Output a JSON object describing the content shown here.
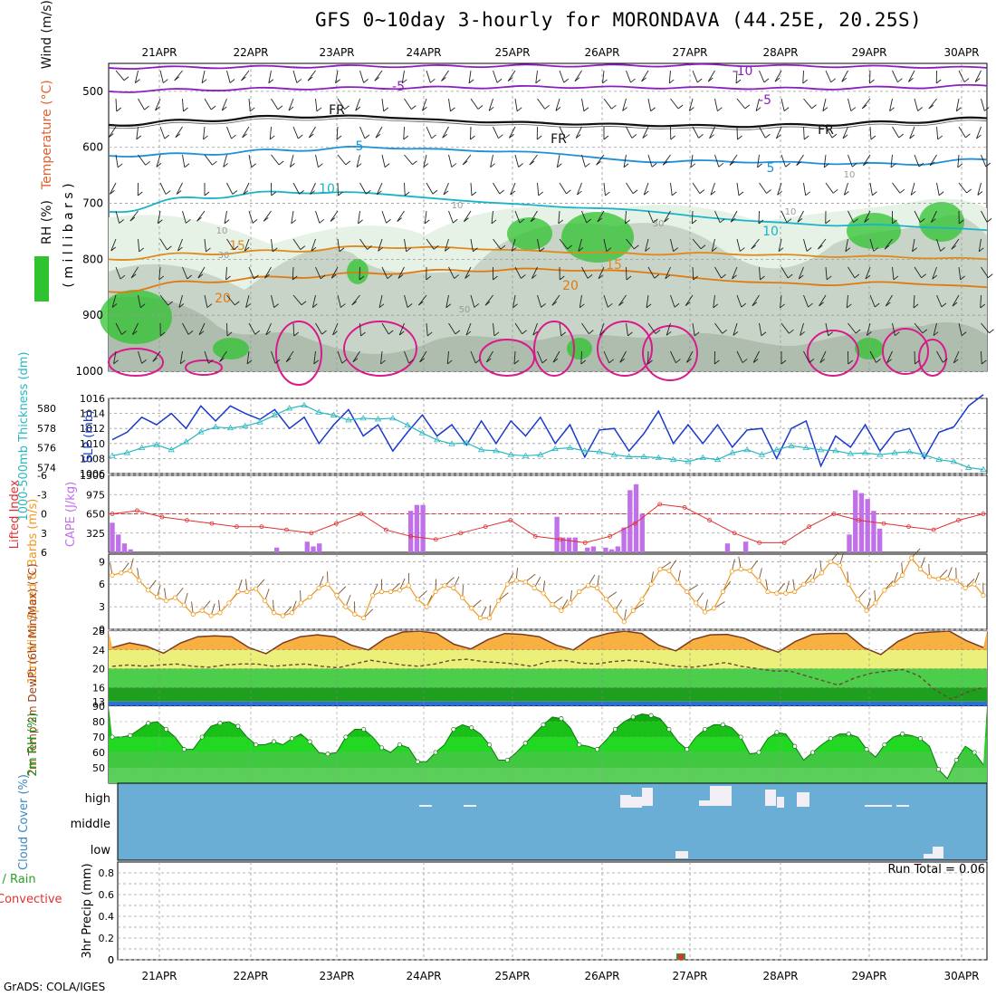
{
  "title": "GFS 0~10day 3-hourly for MORONDAVA (44.25E, 20.25S)",
  "credit": "GrADS: COLA/IGES",
  "colors": {
    "grid": "#9a9a9a",
    "purple": "#8a1fbf",
    "blue": "#1e90d8",
    "teal": "#18b4c8",
    "orange": "#e08a1e",
    "dkorange": "#e07a10",
    "magenta": "#d81a8a",
    "green": "#2fc32f",
    "cape": "#c070e8",
    "li": "#e03030",
    "slp": "#1a3acc",
    "thick": "#2ab8c0",
    "wind": "#f09a20",
    "cloud": "#6aaed6"
  },
  "chart_data": [
    {
      "type": "heatmap",
      "panel": "upper-air",
      "ylabel_parts": [
        "Wind (m/s)",
        "Temperature (°C)",
        "RH (%)"
      ],
      "ylabel_units": "( m i l l i b a r s )",
      "x_labels": [
        "21APR",
        "22APR",
        "23APR",
        "24APR",
        "25APR",
        "26APR",
        "27APR",
        "28APR",
        "29APR",
        "30APR"
      ],
      "yticks": [
        500,
        600,
        700,
        800,
        900,
        1000
      ],
      "ylim": [
        1000,
        450
      ],
      "contours": [
        {
          "label": "-10",
          "p": [
            458,
            457,
            456,
            455,
            455,
            454,
            454,
            453,
            455,
            456,
            458
          ]
        },
        {
          "label": "-5",
          "p": [
            500,
            497,
            495,
            494,
            493,
            492,
            493,
            494,
            495,
            493,
            490
          ]
        },
        {
          "label": "FR",
          "p": [
            560,
            552,
            545,
            545,
            553,
            557,
            560,
            562,
            560,
            555,
            548
          ]
        },
        {
          "label": "5",
          "p": [
            615,
            612,
            605,
            600,
            605,
            610,
            625,
            625,
            628,
            630,
            622
          ]
        },
        {
          "label": "10",
          "p": [
            715,
            690,
            680,
            682,
            695,
            705,
            712,
            728,
            738,
            740,
            748
          ]
        },
        {
          "label": "15",
          "p": [
            800,
            790,
            785,
            778,
            780,
            786,
            790,
            790,
            794,
            796,
            800
          ]
        },
        {
          "label": "20",
          "p": [
            858,
            840,
            832,
            825,
            820,
            818,
            822,
            838,
            845,
            842,
            850
          ]
        }
      ],
      "contour_labels": [
        "-10",
        "-5",
        "-5",
        "FR",
        "FR",
        "FR",
        "5",
        "5",
        "10",
        "10",
        "15",
        "15",
        "20",
        "20",
        "10",
        "30",
        "30",
        "50",
        "10",
        "10",
        "10"
      ]
    },
    {
      "type": "line",
      "panel": "slp-thickness",
      "ylabel_left": "1000-500mb Thickness (dm)",
      "ylabel_right": "SLP (mb)",
      "yticks_left": [
        574,
        576,
        578,
        580
      ],
      "yticks_right": [
        1006,
        1008,
        1010,
        1012,
        1014,
        1016
      ],
      "series": [
        {
          "name": "SLP (mb)",
          "values": [
            1010.5,
            1011.5,
            1013.5,
            1012.5,
            1014,
            1012,
            1015,
            1013,
            1015,
            1014,
            1013.2,
            1014.5,
            1012,
            1013.5,
            1010,
            1012.5,
            1014.5,
            1011,
            1012.5,
            1009,
            1011.5,
            1013.8,
            1011,
            1012.5,
            1009.8,
            1013,
            1010,
            1013,
            1011,
            1013.5,
            1010,
            1012.5,
            1008.2,
            1011.8,
            1012,
            1009,
            1011.3,
            1014.3,
            1010,
            1012.5,
            1010,
            1012.5,
            1009.5,
            1011.8,
            1012,
            1008,
            1012,
            1013,
            1007,
            1011,
            1009.5,
            1012.5,
            1009,
            1011.5,
            1012,
            1008,
            1011.5,
            1012.2,
            1015,
            1016.5
          ]
        },
        {
          "name": "1000-500mb Thickness (dm)",
          "values": [
            575.2,
            575.5,
            576.0,
            576.3,
            575.8,
            576.6,
            577.6,
            578.1,
            578.0,
            578.2,
            578.6,
            579.3,
            580.0,
            580.3,
            579.6,
            579.3,
            578.8,
            579.0,
            578.9,
            579.0,
            578.3,
            577.5,
            576.8,
            576.4,
            576.5,
            575.8,
            575.7,
            575.3,
            575.2,
            575.3,
            575.9,
            576.0,
            575.7,
            575.6,
            575.3,
            575.1,
            575.1,
            575.0,
            574.8,
            574.6,
            575.0,
            574.8,
            575.5,
            575.8,
            575.3,
            575.8,
            576.2,
            576.0,
            575.8,
            575.7,
            575.4,
            575.5,
            575.3,
            575.5,
            575.6,
            575.3,
            574.8,
            574.6,
            574.0,
            573.8
          ]
        }
      ]
    },
    {
      "type": "bar",
      "panel": "cape-li",
      "ylabel_left": "Lifted Index",
      "ylabel_right": "CAPE (J/kg)",
      "yticks_left": [
        -6,
        -3,
        0,
        3,
        6
      ],
      "yticks_right": [
        325,
        650,
        975,
        1300
      ],
      "series": [
        {
          "name": "CAPE (J/kg)",
          "values": [
            500,
            300,
            150,
            50,
            0,
            0,
            0,
            0,
            0,
            0,
            0,
            0,
            0,
            0,
            0,
            0,
            0,
            0,
            0,
            0,
            0,
            0,
            0,
            0,
            0,
            0,
            0,
            80,
            0,
            0,
            0,
            0,
            180,
            100,
            150,
            0,
            0,
            0,
            0,
            0,
            0,
            0,
            0,
            0,
            0,
            0,
            0,
            0,
            0,
            700,
            800,
            800,
            0,
            0,
            0,
            0,
            0,
            0,
            0,
            0,
            0,
            0,
            0,
            0,
            0,
            0,
            0,
            0,
            0,
            0,
            0,
            0,
            0,
            600,
            250,
            250,
            250,
            0,
            80,
            100,
            0,
            80,
            50,
            100,
            420,
            1050,
            1150,
            650,
            0,
            0,
            0,
            0,
            0,
            0,
            0,
            0,
            0,
            0,
            0,
            0,
            0,
            150,
            0,
            0,
            180,
            0,
            0,
            0,
            0,
            0,
            0,
            0,
            0,
            0,
            0,
            0,
            0,
            0,
            0,
            0,
            0,
            300,
            1050,
            1000,
            900,
            700,
            400,
            0,
            0,
            0,
            0,
            0,
            0,
            0,
            0,
            0,
            0,
            0,
            0,
            0,
            0,
            0,
            0,
            0
          ]
        },
        {
          "name": "Lifted Index",
          "values": [
            0,
            -0.5,
            0.5,
            1,
            1.5,
            2,
            2,
            2.5,
            3,
            1.5,
            0,
            2.5,
            3.5,
            4,
            3,
            2,
            1,
            3.5,
            4,
            4.5,
            3.5,
            1.5,
            -1.5,
            -1,
            1,
            3,
            4.5,
            4.5,
            2,
            0,
            1,
            1.5,
            2,
            2.5,
            1,
            0
          ]
        }
      ]
    },
    {
      "type": "line",
      "panel": "wind-10m",
      "ylabel": "10m Wind Speed & Barbs (m/s)",
      "yticks": [
        0,
        3,
        6,
        9
      ],
      "ylim": [
        0,
        10
      ],
      "series": [
        {
          "name": "10m Wind Speed",
          "values": [
            7.2,
            7.5,
            7.8,
            6.5,
            5.2,
            4.3,
            3.8,
            4.2,
            3.2,
            2,
            2.5,
            1.8,
            2.2,
            3.5,
            5,
            5,
            5.4,
            3.8,
            2.2,
            1.8,
            2.2,
            3.5,
            4.3,
            5.5,
            6,
            4.5,
            3,
            2,
            1.5,
            4.5,
            5,
            5,
            5.2,
            5.8,
            4,
            3,
            5,
            5.8,
            5.5,
            4.2,
            2.8,
            1.5,
            1.5,
            3.8,
            6,
            6.5,
            6.3,
            5.5,
            4.8,
            3.3,
            2.5,
            3.5,
            5,
            5.8,
            5.5,
            4,
            2.5,
            1,
            2.5,
            4,
            6,
            8,
            7.8,
            6.2,
            5,
            3.5,
            2.3,
            2.8,
            5,
            7.7,
            8,
            7.8,
            6.5,
            5,
            4.8,
            4.8,
            5,
            6,
            6.5,
            7.5,
            9,
            8.5,
            6,
            4,
            2.5,
            3.5,
            5.2,
            6,
            7.2,
            9.5,
            8,
            7,
            6.7,
            6.7,
            6.5,
            5.5,
            6,
            4.5
          ]
        }
      ]
    },
    {
      "type": "area",
      "panel": "temp-2m",
      "ylabel": "2m Temp 2m DewPt (6hr Min/Max) (°C)",
      "yticks": [
        13,
        16,
        20,
        24,
        28
      ],
      "ylim": [
        12,
        28
      ],
      "series": [
        {
          "name": "2m Temp",
          "values": [
            24.5,
            25.5,
            24.8,
            23.3,
            25.5,
            26.8,
            27,
            26.8,
            24.5,
            23.2,
            25.5,
            26.8,
            27.2,
            26.8,
            25,
            24,
            26.5,
            27.8,
            28,
            27.5,
            25.2,
            24.2,
            26.2,
            27.5,
            27.3,
            26.8,
            25,
            24,
            26.5,
            27.5,
            28,
            27.5,
            25,
            23.8,
            26.2,
            27.2,
            27.3,
            26.5,
            24.8,
            23.5,
            25.8,
            27.3,
            27.5,
            27.5,
            24.5,
            23,
            25.8,
            27.5,
            27.8,
            28,
            26,
            24.5
          ]
        },
        {
          "name": "2m DewPt",
          "values": [
            20.5,
            20.8,
            20.5,
            20.8,
            21,
            20.5,
            20.3,
            20.8,
            21,
            21,
            20.5,
            20.8,
            21,
            20.5,
            20.2,
            21,
            21.8,
            21.3,
            20.8,
            20.5,
            21,
            21.8,
            22,
            21.5,
            21.3,
            21,
            20.5,
            21.5,
            21.8,
            21.2,
            21,
            21.5,
            21.8,
            21.5,
            21,
            20.5,
            20.3,
            20.8,
            21.3,
            20.5,
            20,
            19.5,
            19.5,
            18.5,
            17.5,
            16.5,
            18,
            19,
            19.5,
            19.8,
            18.5,
            15.5,
            13.5,
            15,
            16
          ]
        }
      ]
    },
    {
      "type": "area",
      "panel": "rh-2m",
      "ylabel": "2m RH (%)",
      "yticks": [
        50,
        60,
        70,
        80,
        90
      ],
      "ylim": [
        40,
        90
      ],
      "series": [
        {
          "name": "2m RH",
          "values": [
            70,
            70,
            71,
            75,
            79,
            80,
            75,
            70,
            62,
            62,
            70,
            77,
            79,
            80,
            77,
            70,
            65,
            65,
            67,
            65,
            69,
            72,
            67,
            60,
            59,
            60,
            70,
            75,
            75,
            70,
            63,
            60,
            65,
            63,
            54,
            54,
            60,
            65,
            75,
            78,
            76,
            72,
            65,
            55,
            55,
            60,
            66,
            72,
            78,
            83,
            82,
            76,
            65,
            64,
            62,
            68,
            75,
            80,
            83,
            85,
            84,
            82,
            75,
            67,
            62,
            70,
            75,
            78,
            78,
            76,
            70,
            59,
            60,
            69,
            73,
            72,
            64,
            55,
            60,
            65,
            69,
            72,
            72,
            70,
            62,
            57,
            65,
            70,
            72,
            71,
            69,
            64,
            49,
            43,
            55,
            64,
            60,
            52
          ]
        }
      ]
    },
    {
      "type": "heatmap",
      "panel": "cloud-cover",
      "ylabel": "Cloud Cover (%)",
      "y_categories": [
        "high",
        "middle",
        "low"
      ]
    },
    {
      "type": "bar",
      "panel": "precip",
      "ylabel_parts": [
        "Total / Rain",
        "Convective"
      ],
      "ylabel": "3hr Precip (mm)",
      "yticks": [
        0,
        0.2,
        0.4,
        0.6,
        0.8
      ],
      "ylim": [
        0,
        0.9
      ],
      "annotation": "Run Total = 0.06",
      "series": [
        {
          "name": "Total / Rain",
          "categories": [
            "27APR"
          ],
          "values": [
            0.06
          ]
        },
        {
          "name": "Convective",
          "categories": [
            "27APR"
          ],
          "values": [
            0.06
          ]
        }
      ],
      "x_labels": [
        "21APR",
        "22APR",
        "23APR",
        "24APR",
        "25APR",
        "26APR",
        "27APR",
        "28APR",
        "29APR",
        "30APR"
      ]
    }
  ]
}
